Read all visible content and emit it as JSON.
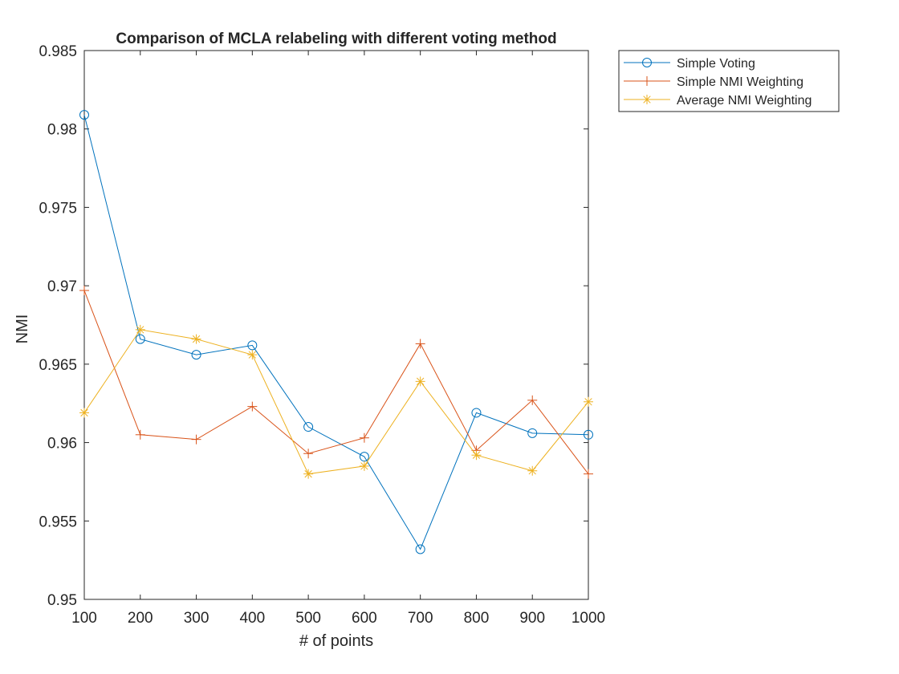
{
  "chart_data": {
    "type": "line",
    "title": "Comparison of MCLA relabeling with different voting method",
    "xlabel": "# of points",
    "ylabel": "NMI",
    "x": [
      100,
      200,
      300,
      400,
      500,
      600,
      700,
      800,
      900,
      1000
    ],
    "xlim": [
      100,
      1000
    ],
    "ylim": [
      0.95,
      0.985
    ],
    "xticks": [
      "100",
      "200",
      "300",
      "400",
      "500",
      "600",
      "700",
      "800",
      "900",
      "1000"
    ],
    "yticks": [
      "0.95",
      "0.955",
      "0.96",
      "0.965",
      "0.97",
      "0.975",
      "0.98",
      "0.985"
    ],
    "grid": false,
    "legend_position": "outside top-right",
    "series": [
      {
        "name": "Simple Voting",
        "marker": "circle",
        "color": "#0072BD",
        "values": [
          0.9809,
          0.9666,
          0.9656,
          0.9662,
          0.961,
          0.9591,
          0.9532,
          0.9619,
          0.9606,
          0.9605
        ]
      },
      {
        "name": "Simple NMI Weighting",
        "marker": "plus",
        "color": "#D95319",
        "values": [
          0.9697,
          0.9605,
          0.9602,
          0.9623,
          0.9593,
          0.9603,
          0.9663,
          0.9595,
          0.9627,
          0.958
        ]
      },
      {
        "name": "Average NMI Weighting",
        "marker": "asterisk",
        "color": "#EDB120",
        "values": [
          0.9619,
          0.9672,
          0.9666,
          0.9656,
          0.958,
          0.9585,
          0.9639,
          0.9592,
          0.9582,
          0.9626
        ]
      }
    ]
  }
}
